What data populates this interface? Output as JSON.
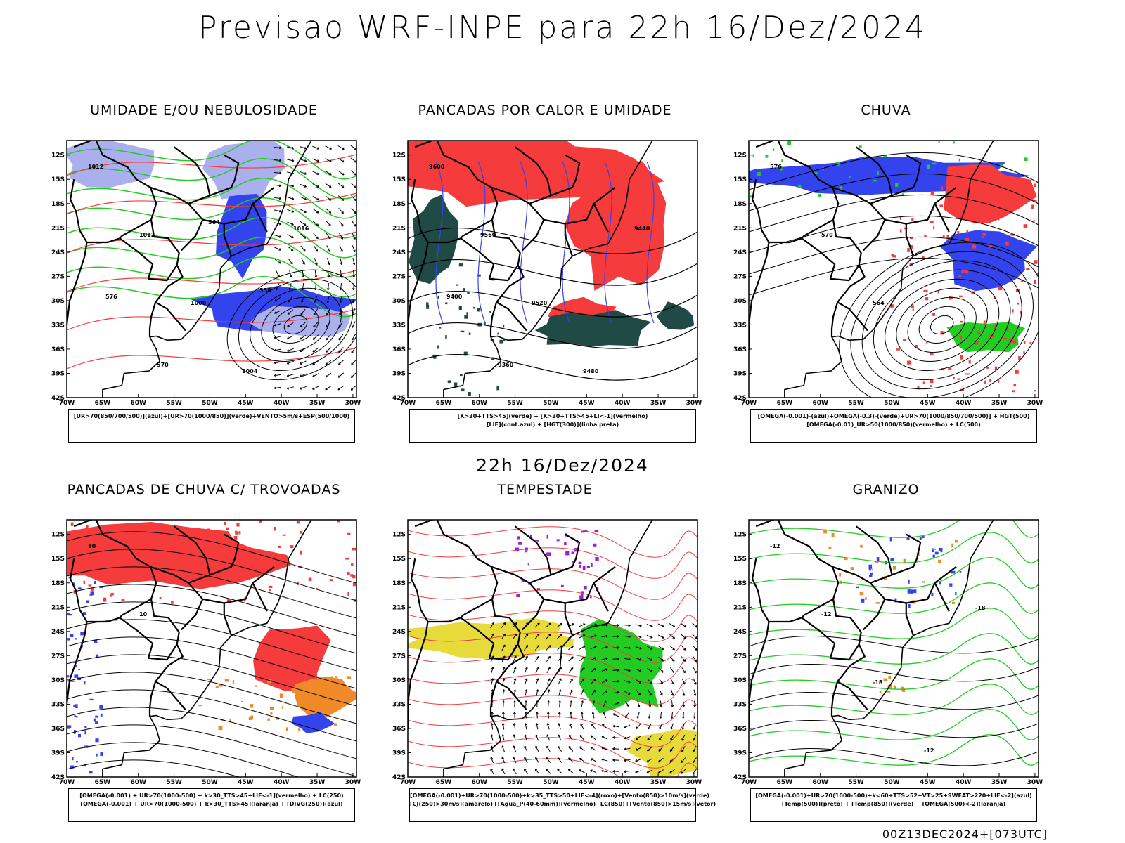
{
  "header": {
    "title": "Previsao WRF-INPE  para 22h 16/Dez/2024"
  },
  "middle": {
    "time_label": "22h 16/Dez/2024"
  },
  "footer": {
    "run_label": "00Z13DEC2024+[073UTC]"
  },
  "axes": {
    "lat_labels": [
      "12S",
      "15S",
      "18S",
      "21S",
      "24S",
      "27S",
      "30S",
      "33S",
      "36S",
      "39S",
      "42S"
    ],
    "lon_labels": [
      "70W",
      "65W",
      "60W",
      "55W",
      "50W",
      "45W",
      "40W",
      "35W",
      "30W"
    ]
  },
  "colors": {
    "red": "#f53b3b",
    "blue": "#3344ee",
    "green": "#22cc22",
    "lavender": "#aab0ee",
    "darkgreen": "#1f4a45",
    "yellow": "#e6db3a",
    "orange": "#f08a28",
    "purple": "#9a22cc"
  },
  "panels": [
    {
      "title": "UMIDADE E/OU NEBULOSIDADE",
      "legend": [
        "[UR>70(850/700/500)](azul)+[UR>70(1000/850)](verde)+VENTO>5m/s+ESP(500/1000)"
      ],
      "contour_labels": [
        "1012",
        "1012",
        "1008",
        "1004",
        "1016",
        "576",
        "570",
        "564",
        "558"
      ]
    },
    {
      "title": "PANCADAS POR CALOR E UMIDADE",
      "legend": [
        "[K>30+TTS>45](verde) + [K>30+TTS>45+LI<-1](vermelho)",
        "[LIF](cont.azul) + [HGT(300)](linha preta)"
      ],
      "contour_labels": [
        "9600",
        "9560",
        "9520",
        "9480",
        "9440",
        "9400",
        "9360"
      ]
    },
    {
      "title": "CHUVA",
      "legend": [
        "[OMEGA(-0.001)-(azul)+OMEGA(-0.3)-(verde)+UR>70(1000/850/700/500)] + HGT(500)",
        "[OMEGA(-0.01)_UR>50(1000/850)(vermelho) + LC(500)"
      ],
      "contour_labels": [
        "576",
        "570",
        "564"
      ]
    },
    {
      "title": "PANCADAS DE CHUVA C/ TROVOADAS",
      "legend": [
        "[OMEGA(-0.001) + UR>70(1000-500) + k>30_TTS>45+LIF<-1](vermelho) + LC(250)",
        "[OMEGA(-0.001) + UR>70(1000-500) + k>30_TTS>45](laranja) + [DIVG(250)](azul)"
      ],
      "contour_labels": [
        "10",
        "10"
      ]
    },
    {
      "title": "TEMPESTADE",
      "legend": [
        "[OMEGA(-0.001)+UR>70(1000-500)+k>35_TTS>50+LIF<-4](roxo)+[Vento(850)>10m/s](verde)",
        "[CJ(250)>30m/s](amarelo)+[Agua_P(40-60mm)](vermelho)+LC(850)+[Vento(850)>15m/s](vetor)"
      ],
      "contour_labels": []
    },
    {
      "title": "GRANIZO",
      "legend": [
        "[OMEGA(-0.001)+UR>70(1000-500)+k<60+TTS>52+VT>25+SWEAT>220+LIF<-2](azul)",
        "[Temp(500)](preto) + [Temp(850)](verde) + [OMEGA(500)<-2](laranja)"
      ],
      "contour_labels": [
        "-12",
        "-12",
        "-18",
        "-12",
        "-18"
      ]
    }
  ]
}
